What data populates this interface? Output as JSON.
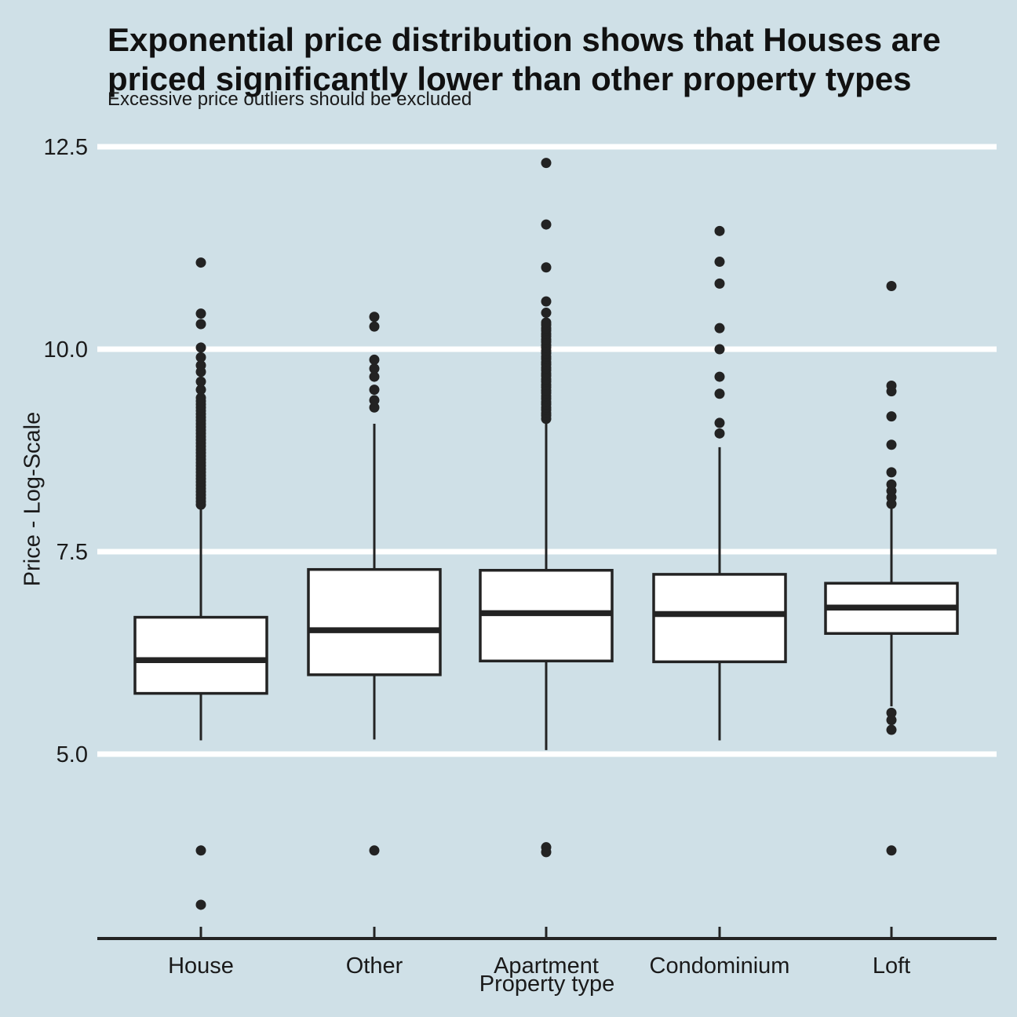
{
  "colors": {
    "background": "#cfe0e7",
    "ink": "#232323",
    "grid_line": "#ffffff",
    "box_fill": "#ffffff",
    "title_text": "#111111",
    "label_text": "#1a1a1a"
  },
  "chart_data": {
    "type": "boxplot",
    "title": "Exponential price distribution shows that Houses are priced significantly lower than other property types",
    "subtitle": "Excessive price outliers should be excluded",
    "xlabel": "Property type",
    "ylabel": "Price - Log-Scale",
    "y_ticks": [
      12.5,
      10.0,
      7.5,
      5.0
    ],
    "y_tick_labels": [
      "12.5",
      "10.0",
      "7.5",
      "5.0"
    ],
    "ylim": [
      2.7,
      12.8
    ],
    "grid": "horizontal-major-only",
    "legend": "none",
    "categories": [
      "House",
      "Other",
      "Apartment",
      "Condominium",
      "Loft"
    ],
    "boxes": [
      {
        "category": "House",
        "q1": 5.75,
        "median": 6.16,
        "q3": 6.69,
        "whisker_low": 5.17,
        "whisker_high": 8.06,
        "outliers_high": [
          8.08,
          8.12,
          8.16,
          8.2,
          8.24,
          8.28,
          8.32,
          8.36,
          8.4,
          8.44,
          8.48,
          8.52,
          8.56,
          8.6,
          8.64,
          8.68,
          8.72,
          8.76,
          8.8,
          8.84,
          8.88,
          8.92,
          8.96,
          9.0,
          9.04,
          9.08,
          9.12,
          9.16,
          9.2,
          9.24,
          9.28,
          9.32,
          9.36,
          9.4,
          9.5,
          9.6,
          9.72,
          9.8,
          9.9,
          10.02,
          10.31,
          10.44,
          11.07
        ],
        "outliers_low": [
          3.81,
          3.14
        ]
      },
      {
        "category": "Other",
        "q1": 5.98,
        "median": 6.53,
        "q3": 7.28,
        "whisker_low": 5.18,
        "whisker_high": 9.08,
        "outliers_high": [
          9.28,
          9.37,
          9.5,
          9.66,
          9.76,
          9.87,
          10.28,
          10.4
        ],
        "outliers_low": [
          3.81
        ]
      },
      {
        "category": "Apartment",
        "q1": 6.15,
        "median": 6.74,
        "q3": 7.27,
        "whisker_low": 5.05,
        "whisker_high": 9.13,
        "outliers_high": [
          9.14,
          9.18,
          9.21,
          9.25,
          9.28,
          9.32,
          9.35,
          9.39,
          9.42,
          9.46,
          9.49,
          9.53,
          9.56,
          9.6,
          9.63,
          9.67,
          9.7,
          9.74,
          9.77,
          9.81,
          9.84,
          9.88,
          9.91,
          9.95,
          9.98,
          10.02,
          10.05,
          10.09,
          10.12,
          10.16,
          10.19,
          10.23,
          10.26,
          10.3,
          10.33,
          10.45,
          10.59,
          11.01,
          11.54,
          12.3
        ],
        "outliers_low": [
          3.79,
          3.85
        ]
      },
      {
        "category": "Condominium",
        "q1": 6.14,
        "median": 6.73,
        "q3": 7.22,
        "whisker_low": 5.17,
        "whisker_high": 8.79,
        "outliers_high": [
          8.96,
          9.09,
          9.45,
          9.66,
          10.0,
          10.26,
          10.81,
          11.08,
          11.46
        ],
        "outliers_low": []
      },
      {
        "category": "Loft",
        "q1": 6.49,
        "median": 6.81,
        "q3": 7.11,
        "whisker_low": 5.59,
        "whisker_high": 8.06,
        "outliers_high": [
          8.09,
          8.17,
          8.25,
          8.33,
          8.48,
          8.82,
          9.17,
          9.48,
          9.55,
          10.78
        ],
        "outliers_low": [
          5.51,
          5.42,
          5.3,
          3.81
        ]
      }
    ]
  }
}
